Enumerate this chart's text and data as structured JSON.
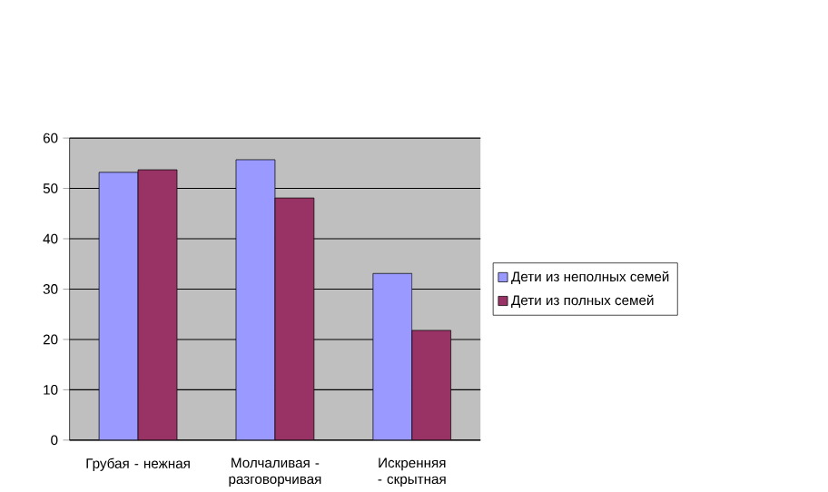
{
  "chart_data": {
    "type": "bar",
    "categories": [
      "Грубая - нежная",
      "Молчаливая - разговорчивая",
      "Искренняя - скрытная"
    ],
    "series": [
      {
        "name": "Дети из неполных семей",
        "color": "#9999ff",
        "values": [
          53.2,
          55.7,
          33.1
        ]
      },
      {
        "name": "Дети из полных семей",
        "color": "#993366",
        "values": [
          53.7,
          48.1,
          21.8
        ]
      }
    ],
    "ylim": [
      0,
      60
    ],
    "yticks": [
      0,
      10,
      20,
      30,
      40,
      50,
      60
    ],
    "grid": "y",
    "legend": "right"
  }
}
